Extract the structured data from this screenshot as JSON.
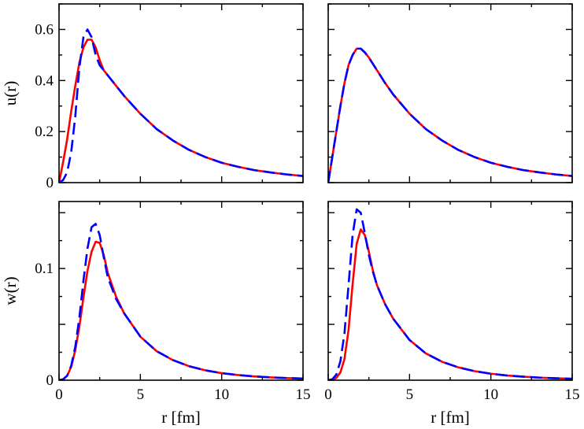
{
  "chart_data": [
    {
      "type": "line",
      "panel": "top-left",
      "xlabel": "",
      "ylabel": "u(r)",
      "xlim": [
        0,
        15
      ],
      "ylim": [
        0,
        0.7
      ],
      "xticks": [
        0,
        5,
        10,
        15
      ],
      "xtick_labels": [
        "",
        "",
        "",
        ""
      ],
      "yticks": [
        0,
        0.2,
        0.4,
        0.6
      ],
      "ytick_labels": [
        "0",
        "0.2",
        "0.4",
        "0.6"
      ],
      "grid": false,
      "series": [
        {
          "color": "#ff0000",
          "style": "solid",
          "x": [
            0,
            0.25,
            0.5,
            0.75,
            1.0,
            1.25,
            1.5,
            1.75,
            2.0,
            2.25,
            2.5,
            2.75,
            3.0,
            3.5,
            4,
            5,
            6,
            7,
            8,
            9,
            10,
            11,
            12,
            13,
            14,
            15
          ],
          "y": [
            0,
            0.08,
            0.17,
            0.28,
            0.38,
            0.47,
            0.53,
            0.56,
            0.56,
            0.53,
            0.48,
            0.44,
            0.42,
            0.38,
            0.34,
            0.27,
            0.21,
            0.165,
            0.128,
            0.1,
            0.078,
            0.062,
            0.049,
            0.04,
            0.032,
            0.026
          ]
        },
        {
          "color": "#0000ff",
          "style": "dashed",
          "x": [
            0,
            0.25,
            0.5,
            0.75,
            1.0,
            1.25,
            1.5,
            1.75,
            2.0,
            2.25,
            2.5,
            2.75,
            3.0,
            3.5,
            4,
            5,
            6,
            7,
            8,
            9,
            10,
            11,
            12,
            13,
            14,
            15
          ],
          "y": [
            0,
            0.01,
            0.04,
            0.12,
            0.26,
            0.45,
            0.57,
            0.6,
            0.57,
            0.5,
            0.46,
            0.44,
            0.42,
            0.38,
            0.34,
            0.27,
            0.21,
            0.165,
            0.128,
            0.1,
            0.078,
            0.062,
            0.049,
            0.04,
            0.032,
            0.026
          ]
        }
      ]
    },
    {
      "type": "line",
      "panel": "top-right",
      "xlabel": "",
      "ylabel": "",
      "xlim": [
        0,
        15
      ],
      "ylim": [
        0,
        0.7
      ],
      "xticks": [
        0,
        5,
        10,
        15
      ],
      "xtick_labels": [
        "",
        "",
        "",
        ""
      ],
      "yticks": [
        0,
        0.2,
        0.4,
        0.6
      ],
      "ytick_labels": [
        "",
        "",
        "",
        ""
      ],
      "grid": false,
      "series": [
        {
          "color": "#ff0000",
          "style": "solid",
          "x": [
            0,
            0.25,
            0.5,
            0.75,
            1.0,
            1.25,
            1.5,
            1.75,
            2.0,
            2.25,
            2.5,
            3.0,
            3.5,
            4,
            5,
            6,
            7,
            8,
            9,
            10,
            11,
            12,
            13,
            14,
            15
          ],
          "y": [
            0,
            0.1,
            0.2,
            0.3,
            0.39,
            0.46,
            0.5,
            0.525,
            0.525,
            0.51,
            0.49,
            0.44,
            0.39,
            0.345,
            0.27,
            0.21,
            0.165,
            0.128,
            0.1,
            0.078,
            0.062,
            0.049,
            0.04,
            0.032,
            0.026
          ]
        },
        {
          "color": "#0000ff",
          "style": "dashed",
          "x": [
            0,
            0.25,
            0.5,
            0.75,
            1.0,
            1.25,
            1.5,
            1.75,
            2.0,
            2.25,
            2.5,
            3.0,
            3.5,
            4,
            5,
            6,
            7,
            8,
            9,
            10,
            11,
            12,
            13,
            14,
            15
          ],
          "y": [
            0,
            0.1,
            0.2,
            0.3,
            0.39,
            0.46,
            0.5,
            0.525,
            0.525,
            0.51,
            0.49,
            0.44,
            0.39,
            0.345,
            0.27,
            0.21,
            0.165,
            0.128,
            0.1,
            0.078,
            0.062,
            0.049,
            0.04,
            0.032,
            0.026
          ]
        }
      ]
    },
    {
      "type": "line",
      "panel": "bottom-left",
      "xlabel": "r [fm]",
      "ylabel": "w(r)",
      "xlim": [
        0,
        15
      ],
      "ylim": [
        0,
        0.16
      ],
      "xticks": [
        0,
        5,
        10,
        15
      ],
      "xtick_labels": [
        "0",
        "5",
        "10",
        "15"
      ],
      "yticks": [
        0,
        0.05,
        0.1,
        0.15
      ],
      "ytick_labels": [
        "0",
        "",
        "0.1",
        ""
      ],
      "grid": false,
      "series": [
        {
          "color": "#ff0000",
          "style": "solid",
          "x": [
            0,
            0.25,
            0.5,
            0.75,
            1.0,
            1.25,
            1.5,
            1.75,
            2.0,
            2.25,
            2.5,
            2.75,
            3.0,
            3.5,
            4,
            5,
            6,
            7,
            8,
            9,
            10,
            11,
            12,
            13,
            14,
            15
          ],
          "y": [
            0,
            0.0008,
            0.004,
            0.012,
            0.027,
            0.048,
            0.074,
            0.098,
            0.115,
            0.124,
            0.123,
            0.112,
            0.096,
            0.075,
            0.06,
            0.039,
            0.026,
            0.018,
            0.0125,
            0.0088,
            0.0063,
            0.0046,
            0.0034,
            0.0025,
            0.0019,
            0.0015
          ]
        },
        {
          "color": "#0000ff",
          "style": "dashed",
          "x": [
            0,
            0.25,
            0.5,
            0.75,
            1.0,
            1.25,
            1.5,
            1.75,
            2.0,
            2.25,
            2.5,
            2.75,
            3.0,
            3.5,
            4,
            5,
            6,
            7,
            8,
            9,
            10,
            11,
            12,
            13,
            14,
            15
          ],
          "y": [
            0,
            0.0008,
            0.004,
            0.013,
            0.03,
            0.056,
            0.089,
            0.118,
            0.137,
            0.14,
            0.13,
            0.11,
            0.092,
            0.073,
            0.06,
            0.039,
            0.026,
            0.018,
            0.0125,
            0.0088,
            0.0063,
            0.0046,
            0.0034,
            0.0025,
            0.0019,
            0.0015
          ]
        }
      ]
    },
    {
      "type": "line",
      "panel": "bottom-right",
      "xlabel": "r [fm]",
      "ylabel": "",
      "xlim": [
        0,
        15
      ],
      "ylim": [
        0,
        0.16
      ],
      "xticks": [
        0,
        5,
        10,
        15
      ],
      "xtick_labels": [
        "0",
        "5",
        "10",
        "15"
      ],
      "yticks": [
        0,
        0.05,
        0.1,
        0.15
      ],
      "ytick_labels": [
        "",
        "",
        "",
        ""
      ],
      "grid": false,
      "series": [
        {
          "color": "#ff0000",
          "style": "solid",
          "x": [
            0,
            0.25,
            0.5,
            0.75,
            1.0,
            1.25,
            1.5,
            1.75,
            2.0,
            2.25,
            2.5,
            2.75,
            3.0,
            3.5,
            4,
            5,
            6,
            7,
            8,
            9,
            10,
            11,
            12,
            13,
            14,
            15
          ],
          "y": [
            0,
            0.0004,
            0.002,
            0.007,
            0.019,
            0.045,
            0.086,
            0.122,
            0.135,
            0.13,
            0.115,
            0.098,
            0.085,
            0.068,
            0.055,
            0.036,
            0.024,
            0.0165,
            0.0115,
            0.0081,
            0.0058,
            0.0042,
            0.0031,
            0.0023,
            0.0017,
            0.0013
          ]
        },
        {
          "color": "#0000ff",
          "style": "dashed",
          "x": [
            0,
            0.25,
            0.5,
            0.75,
            1.0,
            1.25,
            1.5,
            1.75,
            2.0,
            2.25,
            2.5,
            2.75,
            3.0,
            3.5,
            4,
            5,
            6,
            7,
            8,
            9,
            10,
            11,
            12,
            13,
            14,
            15
          ],
          "y": [
            0,
            0.0008,
            0.005,
            0.017,
            0.042,
            0.085,
            0.13,
            0.153,
            0.15,
            0.132,
            0.112,
            0.097,
            0.085,
            0.068,
            0.055,
            0.036,
            0.024,
            0.0165,
            0.0115,
            0.0081,
            0.0058,
            0.0042,
            0.0031,
            0.0023,
            0.0017,
            0.0013
          ]
        }
      ]
    }
  ]
}
